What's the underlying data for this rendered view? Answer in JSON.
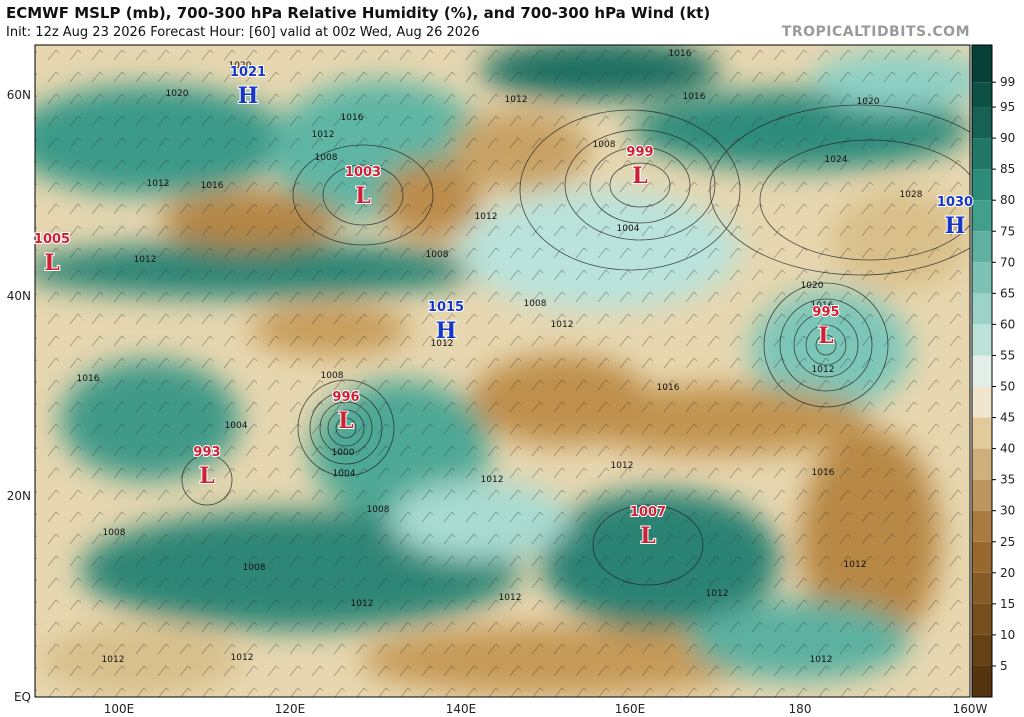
{
  "header": {
    "title": "ECMWF MSLP (mb), 700-300 hPa Relative Humidity (%), and 700-300 hPa Wind (kt)",
    "subtitle": "Init: 12z Aug 23 2026   Forecast Hour: [60]   valid at 00z Wed, Aug 26 2026",
    "source": "TROPICALTIDBITS.COM"
  },
  "map": {
    "lat_labels": [
      "60N",
      "40N",
      "20N",
      "EQ"
    ],
    "lon_labels": [
      "100E",
      "120E",
      "140E",
      "160E",
      "180",
      "160W"
    ],
    "centers": [
      {
        "label": "1021",
        "type": "H"
      },
      {
        "label": "1003",
        "type": "L"
      },
      {
        "label": "1005",
        "type": "L"
      },
      {
        "label": "999",
        "type": "L"
      },
      {
        "label": "995",
        "type": "L"
      },
      {
        "label": "1030",
        "type": "H"
      },
      {
        "label": "1015",
        "type": "H"
      },
      {
        "label": "996",
        "type": "L"
      },
      {
        "label": "993",
        "type": "L"
      },
      {
        "label": "1007",
        "type": "L"
      }
    ],
    "isobar_labels": [
      "1020",
      "1016",
      "1012",
      "1008",
      "1012",
      "1016",
      "1020",
      "1016",
      "1016",
      "1012",
      "1020",
      "1024",
      "1028",
      "1008",
      "1004",
      "1012",
      "1008",
      "1008",
      "1012",
      "1016",
      "1020",
      "1016",
      "1012",
      "1012",
      "1008",
      "1004",
      "1000",
      "1004",
      "1012",
      "1012",
      "1016",
      "1008",
      "1008",
      "1008",
      "1012",
      "1012",
      "1012",
      "1012",
      "1012",
      "1012",
      "1012",
      "1012",
      "1016"
    ]
  },
  "colorbar": {
    "ticks": [
      99,
      95,
      90,
      85,
      80,
      75,
      70,
      65,
      60,
      55,
      50,
      45,
      40,
      35,
      30,
      25,
      20,
      15,
      10,
      5
    ]
  }
}
